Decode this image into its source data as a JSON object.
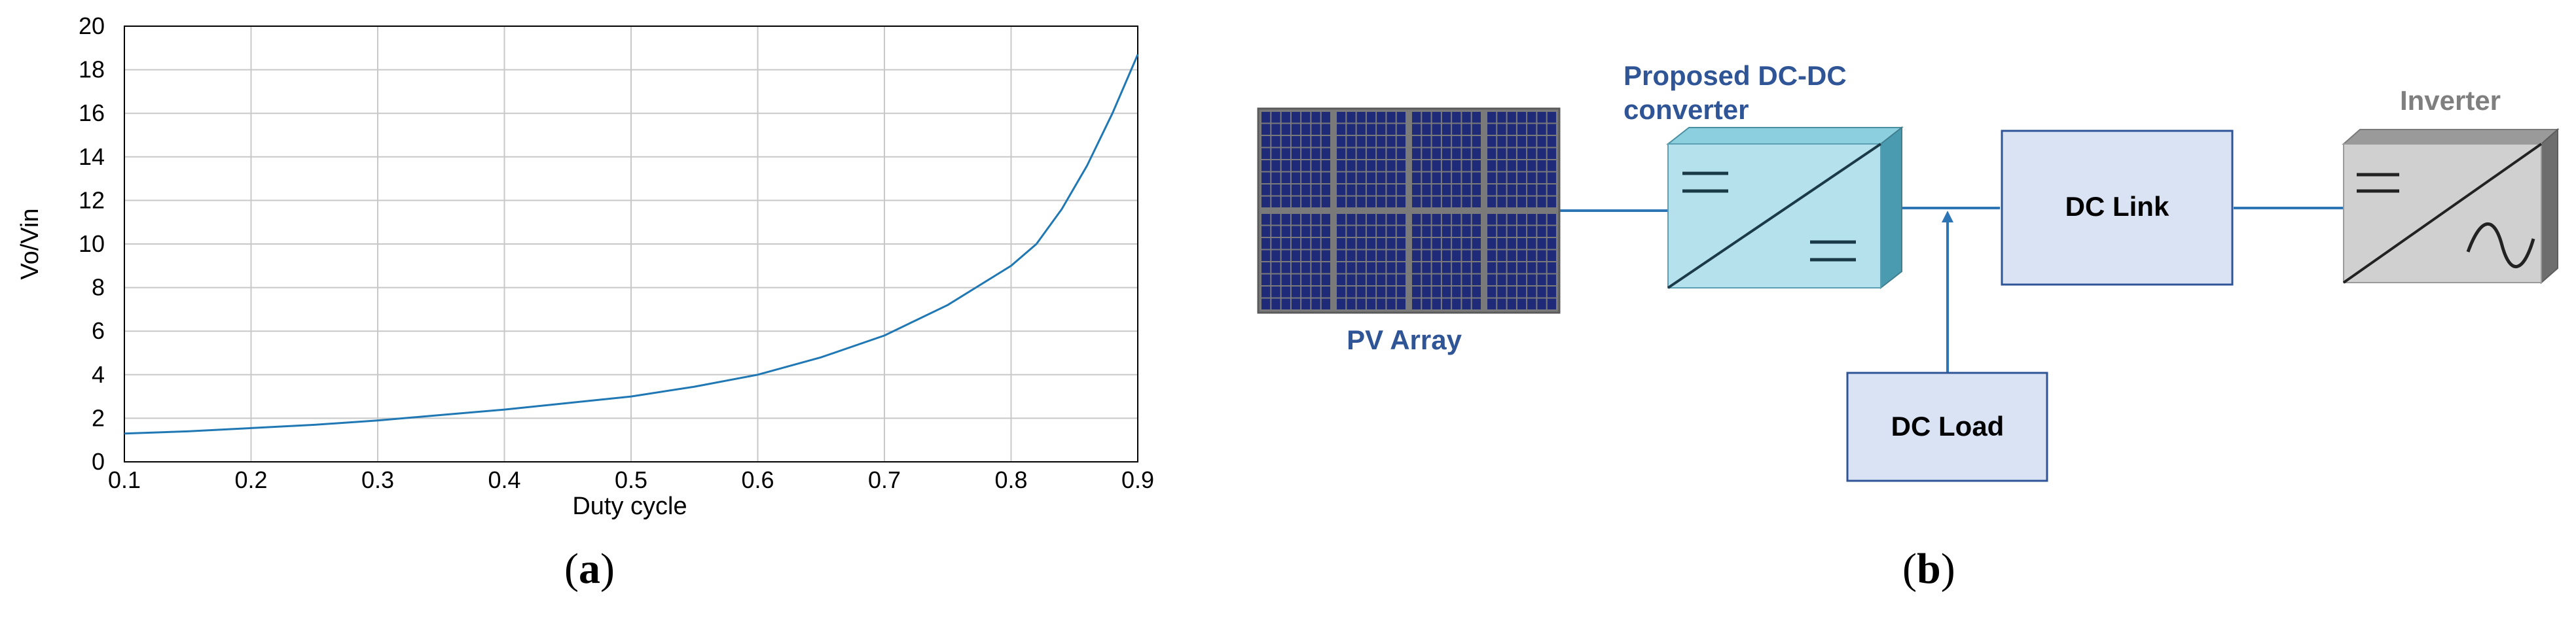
{
  "chart_data": {
    "type": "line",
    "title": "",
    "xlabel": "Duty cycle",
    "ylabel": "Vo/Vin",
    "xlim": [
      0.1,
      0.9
    ],
    "ylim": [
      0,
      20
    ],
    "xticks": [
      "0.1",
      "0.2",
      "0.3",
      "0.4",
      "0.5",
      "0.6",
      "0.7",
      "0.8",
      "0.9"
    ],
    "yticks": [
      "0",
      "2",
      "4",
      "6",
      "8",
      "10",
      "12",
      "14",
      "16",
      "18",
      "20"
    ],
    "grid": true,
    "series": [
      {
        "x": [
          0.1,
          0.15,
          0.2,
          0.25,
          0.3,
          0.35,
          0.4,
          0.45,
          0.5,
          0.55,
          0.6,
          0.65,
          0.7,
          0.75,
          0.8,
          0.82,
          0.84,
          0.86,
          0.88,
          0.9
        ],
        "y": [
          1.3,
          1.4,
          1.55,
          1.7,
          1.9,
          2.15,
          2.4,
          2.7,
          3.0,
          3.45,
          4.0,
          4.8,
          5.8,
          7.2,
          9.0,
          10.0,
          11.6,
          13.6,
          16.0,
          18.7
        ],
        "color": "#1f77b4"
      }
    ]
  },
  "labels": {
    "a_paren_open": "(",
    "a_letter": "a",
    "a_paren_close": ")",
    "b_paren_open": "(",
    "b_letter": "b",
    "b_paren_close": ")"
  },
  "diagram": {
    "converter_title": "Proposed DC-DC converter",
    "converter_line1": "Proposed DC-DC",
    "converter_line2": "converter",
    "pv_array": "PV Array",
    "dc_link": "DC Link",
    "dc_load": "DC Load",
    "inverter": "Inverter",
    "colors": {
      "title_blue": "#2f5597",
      "box_fill": "#dae3f3",
      "box_stroke": "#2f5597",
      "line_blue": "#2e75b6",
      "converter_fill": "#b4e1ec",
      "inverter_fill": "#d0d0d0",
      "inverter_text": "#7f7f7f",
      "panel_fill": "#1f2a78"
    }
  }
}
